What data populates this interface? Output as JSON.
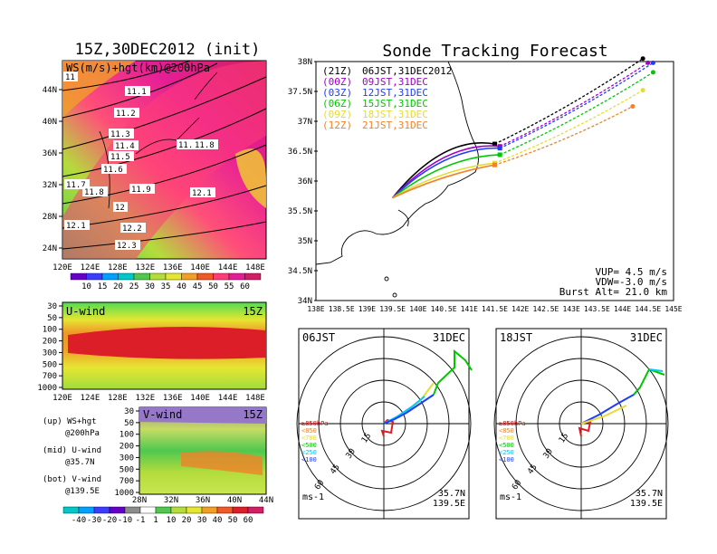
{
  "left": {
    "title": "15Z,30DEC2012 (init)",
    "ws_panel": {
      "label": "WS(m/s)+hgt(km)@200hPa",
      "yticks": [
        "44N",
        "40N",
        "36N",
        "32N",
        "28N",
        "24N"
      ],
      "xticks": [
        "120E",
        "124E",
        "128E",
        "132E",
        "136E",
        "140E",
        "144E",
        "148E"
      ],
      "contour_labels": [
        "11",
        "11.1",
        "11.2",
        "11.3",
        "11.4",
        "11.5",
        "11.6",
        "11.7",
        "11.8",
        "11.7",
        "11.8",
        "11.9",
        "12",
        "12.1",
        "12.1",
        "12.2",
        "12.3"
      ],
      "colorbar_ticks": [
        "10",
        "15",
        "20",
        "25",
        "30",
        "35",
        "40",
        "45",
        "50",
        "55",
        "60"
      ]
    },
    "u_panel": {
      "label": "U-wind",
      "time": "15Z",
      "yticks": [
        "30",
        "50",
        "100",
        "200",
        "300",
        "500",
        "700",
        "1000"
      ],
      "xticks": [
        "120E",
        "124E",
        "128E",
        "132E",
        "136E",
        "140E",
        "144E",
        "148E"
      ]
    },
    "v_panel": {
      "label": "V-wind",
      "time": "15Z",
      "yticks": [
        "30",
        "50",
        "100",
        "200",
        "300",
        "500",
        "700",
        "1000"
      ],
      "xticks": [
        "28N",
        "32N",
        "36N",
        "40N",
        "44N"
      ],
      "colorbar_ticks": [
        "-40",
        "-30",
        "-20",
        "-10",
        "-1",
        "1",
        "10",
        "20",
        "30",
        "40",
        "50",
        "60"
      ]
    },
    "legend": {
      "up": "(up) WS+hgt",
      "up2": "@200hPa",
      "mid": "(mid) U-wind",
      "mid2": "@35.7N",
      "bot": "(bot) V-wind",
      "bot2": "@139.5E"
    }
  },
  "right": {
    "title": "Sonde Tracking Forecast",
    "map": {
      "yticks": [
        "38N",
        "37.5N",
        "37N",
        "36.5N",
        "36N",
        "35.5N",
        "35N",
        "34.5N",
        "34N"
      ],
      "xticks": [
        "138E",
        "138.5E",
        "139E",
        "139.5E",
        "140E",
        "140.5E",
        "141E",
        "141.5E",
        "142E",
        "142.5E",
        "143E",
        "143.5E",
        "144E",
        "144.5E",
        "145E"
      ],
      "launches": [
        {
          "utc": "(21Z)",
          "jst": "06JST,31DEC2012",
          "color": "#000000"
        },
        {
          "utc": "(00Z)",
          "jst": "09JST,31DEC",
          "color": "#a000c8"
        },
        {
          "utc": "(03Z)",
          "jst": "12JST,31DEC",
          "color": "#1e3cff"
        },
        {
          "utc": "(06Z)",
          "jst": "15JST,31DEC",
          "color": "#00c800"
        },
        {
          "utc": "(09Z)",
          "jst": "18JST,31DEC",
          "color": "#e6dc32"
        },
        {
          "utc": "(12Z)",
          "jst": "21JST,31DEC",
          "color": "#f08228"
        }
      ],
      "params": [
        "VUP= 4.5 m/s",
        "VDW=-3.0 m/s",
        "Burst Alt= 21.0 km"
      ]
    },
    "hodo1": {
      "time": "06JST",
      "date": "31DEC",
      "lat": "35.7N",
      "lon": "139.5E",
      "unit": "ms-1"
    },
    "hodo2": {
      "time": "18JST",
      "date": "31DEC",
      "lat": "35.7N",
      "lon": "139.5E",
      "unit": "ms-1"
    },
    "hodo_rings": [
      "15",
      "30",
      "45",
      "60"
    ],
    "hodo_legend": [
      "≥850hPa",
      "<850",
      "<700",
      "<500",
      "<250",
      "<100"
    ],
    "hodo_legend_colors": [
      "#e00000",
      "#f08228",
      "#e6dc32",
      "#00c800",
      "#00c8ff",
      "#1e3cff"
    ]
  },
  "chart_data": [
    {
      "type": "heatmap",
      "title": "15Z,30DEC2012 (init)",
      "subtitle": "WS(m/s)+hgt(km)@200hPa",
      "x_range": [
        "120E",
        "148E"
      ],
      "y_range": [
        "22N",
        "47N"
      ],
      "colorbar": [
        10,
        15,
        20,
        25,
        30,
        35,
        40,
        45,
        50,
        55,
        60
      ],
      "contour_labels_km": [
        11,
        11.1,
        11.2,
        11.3,
        11.4,
        11.5,
        11.6,
        11.7,
        11.8,
        11.9,
        12,
        12.1,
        12.2,
        12.3
      ]
    },
    {
      "type": "heatmap",
      "title": "U-wind",
      "subtitle": "@35.7N",
      "y_levels_hPa": [
        30,
        50,
        100,
        200,
        300,
        500,
        700,
        1000
      ],
      "x_range": [
        "120E",
        "148E"
      ]
    },
    {
      "type": "heatmap",
      "title": "V-wind",
      "subtitle": "@139.5E",
      "y_levels_hPa": [
        30,
        50,
        100,
        200,
        300,
        500,
        700,
        1000
      ],
      "x_range": [
        "28N",
        "44N"
      ],
      "colorbar": [
        -40,
        -30,
        -20,
        -10,
        -1,
        1,
        10,
        20,
        30,
        40,
        50,
        60
      ]
    },
    {
      "type": "line",
      "title": "Sonde Tracking Forecast",
      "xlim": [
        138,
        145
      ],
      "ylim": [
        34,
        38
      ],
      "series": [
        {
          "name": "06JST,31DEC2012",
          "burst": [
            141.5,
            36.62
          ],
          "end": [
            144.4,
            38.05
          ]
        },
        {
          "name": "09JST,31DEC",
          "burst": [
            141.6,
            36.58
          ],
          "end": [
            144.5,
            37.98
          ]
        },
        {
          "name": "12JST,31DEC",
          "burst": [
            141.6,
            36.55
          ],
          "end": [
            144.6,
            37.98
          ]
        },
        {
          "name": "15JST,31DEC",
          "burst": [
            141.6,
            36.44
          ],
          "end": [
            144.6,
            37.82
          ]
        },
        {
          "name": "18JST,31DEC",
          "burst": [
            141.5,
            36.3
          ],
          "end": [
            144.4,
            37.52
          ]
        },
        {
          "name": "21JST,31DEC",
          "burst": [
            141.5,
            36.27
          ],
          "end": [
            144.2,
            37.25
          ]
        }
      ],
      "launch_point": [
        139.5,
        35.72
      ]
    }
  ]
}
